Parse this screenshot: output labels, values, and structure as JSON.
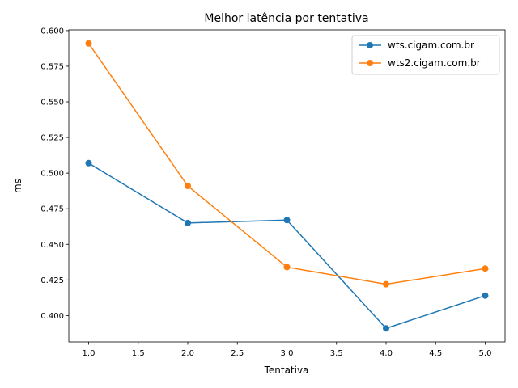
{
  "chart_data": {
    "type": "line",
    "title": "Melhor latência por tentativa",
    "xlabel": "Tentativa",
    "ylabel": "ms",
    "x": [
      1.0,
      2.0,
      3.0,
      4.0,
      5.0
    ],
    "xlim": [
      0.8,
      5.2
    ],
    "ylim": [
      0.3815,
      0.6005
    ],
    "xticks": [
      "1.0",
      "1.5",
      "2.0",
      "2.5",
      "3.0",
      "3.5",
      "4.0",
      "4.5",
      "5.0"
    ],
    "xtick_values": [
      1.0,
      1.5,
      2.0,
      2.5,
      3.0,
      3.5,
      4.0,
      4.5,
      5.0
    ],
    "yticks": [
      "0.400",
      "0.425",
      "0.450",
      "0.475",
      "0.500",
      "0.525",
      "0.550",
      "0.575",
      "0.600"
    ],
    "ytick_values": [
      0.4,
      0.425,
      0.45,
      0.475,
      0.5,
      0.525,
      0.55,
      0.575,
      0.6
    ],
    "grid": false,
    "legend_position": "top-right",
    "series": [
      {
        "name": "wts.cigam.com.br",
        "color": "#1f77b4",
        "marker": "circle",
        "values": [
          0.507,
          0.465,
          0.467,
          0.391,
          0.414
        ]
      },
      {
        "name": "wts2.cigam.com.br",
        "color": "#ff7f0e",
        "marker": "circle",
        "values": [
          0.591,
          0.491,
          0.434,
          0.422,
          0.433
        ]
      }
    ]
  }
}
